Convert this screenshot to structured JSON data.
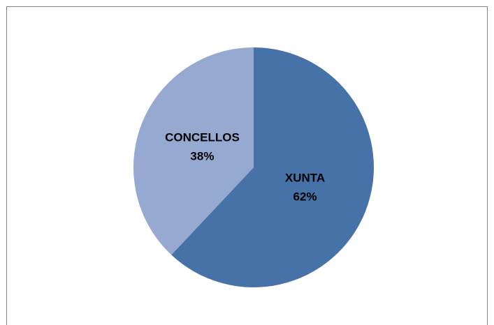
{
  "chart_data": {
    "type": "pie",
    "categories": [
      "XUNTA",
      "CONCELLOS"
    ],
    "values": [
      62,
      38
    ],
    "value_labels": [
      "62%",
      "38%"
    ],
    "colors": [
      "#4672a8",
      "#95a9d1"
    ]
  }
}
